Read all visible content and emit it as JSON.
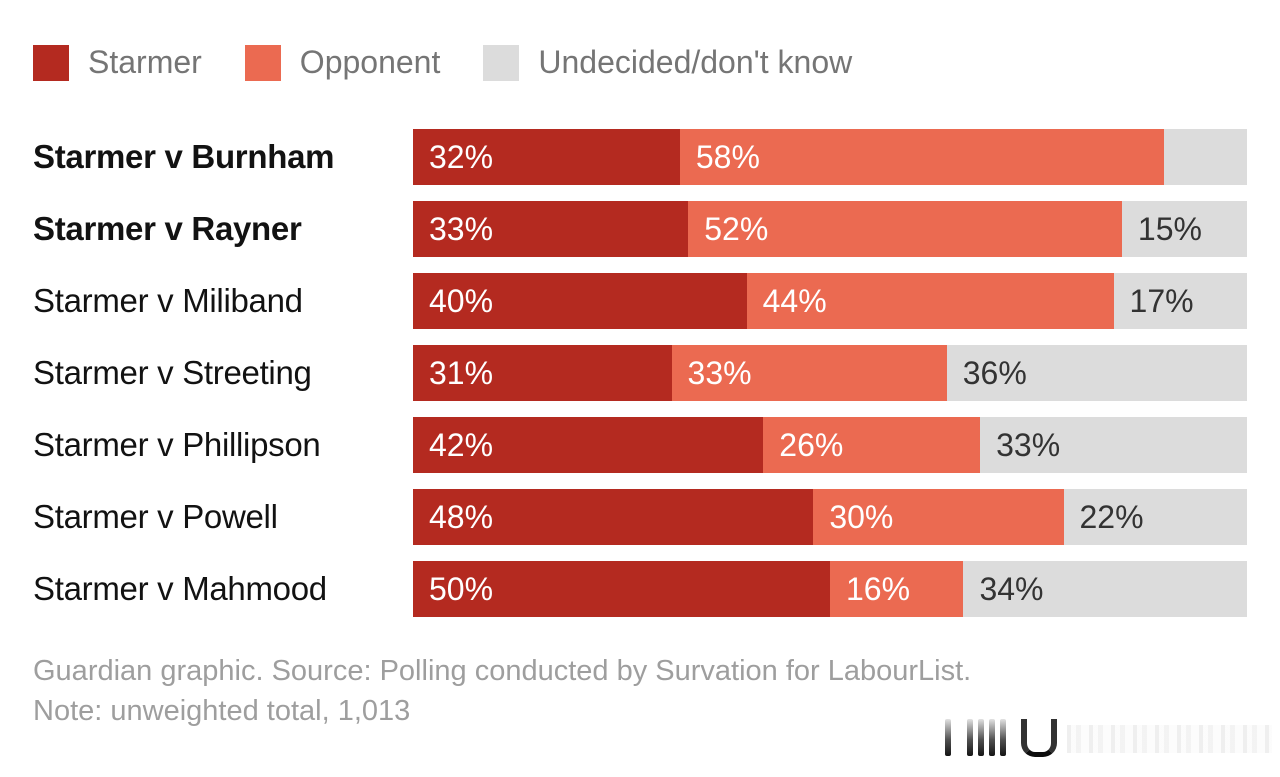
{
  "colors": {
    "starmer": "#b42a20",
    "opponent": "#eb6a51",
    "undecided": "#dcdcdc",
    "label_on_color": "#ffffff",
    "label_on_gray": "#333333",
    "legend_text": "#757575",
    "footer_text": "#9e9e9e",
    "row_label_text": "#121212"
  },
  "legend": [
    {
      "id": "starmer",
      "label": "Starmer",
      "color": "#b42a20"
    },
    {
      "id": "opponent",
      "label": "Opponent",
      "color": "#eb6a51"
    },
    {
      "id": "undecided",
      "label": "Undecided/don't know",
      "color": "#dcdcdc"
    }
  ],
  "rows": [
    {
      "label": "Starmer v Burnham",
      "bold": true,
      "segments": [
        {
          "value": 32,
          "text": "32%"
        },
        {
          "value": 58,
          "text": "58%"
        },
        {
          "value": 10,
          "text": ""
        }
      ]
    },
    {
      "label": "Starmer v Rayner",
      "bold": true,
      "segments": [
        {
          "value": 33,
          "text": "33%"
        },
        {
          "value": 52,
          "text": "52%"
        },
        {
          "value": 15,
          "text": "15%"
        }
      ]
    },
    {
      "label": "Starmer v Miliband",
      "bold": false,
      "segments": [
        {
          "value": 40,
          "text": "40%"
        },
        {
          "value": 44,
          "text": "44%"
        },
        {
          "value": 17,
          "text": "17%"
        }
      ]
    },
    {
      "label": "Starmer v Streeting",
      "bold": false,
      "segments": [
        {
          "value": 31,
          "text": "31%"
        },
        {
          "value": 33,
          "text": "33%"
        },
        {
          "value": 36,
          "text": "36%"
        }
      ]
    },
    {
      "label": "Starmer v Phillipson",
      "bold": false,
      "segments": [
        {
          "value": 42,
          "text": "42%"
        },
        {
          "value": 26,
          "text": "26%"
        },
        {
          "value": 33,
          "text": "33%"
        }
      ]
    },
    {
      "label": "Starmer v Powell",
      "bold": false,
      "segments": [
        {
          "value": 48,
          "text": "48%"
        },
        {
          "value": 30,
          "text": "30%"
        },
        {
          "value": 22,
          "text": "22%"
        }
      ]
    },
    {
      "label": "Starmer v Mahmood",
      "bold": false,
      "segments": [
        {
          "value": 50,
          "text": "50%"
        },
        {
          "value": 16,
          "text": "16%"
        },
        {
          "value": 34,
          "text": "34%"
        }
      ]
    }
  ],
  "footer": {
    "line1": "Guardian graphic. Source: Polling conducted by Survation for LabourList.",
    "line2": "Note: unweighted total, 1,013"
  },
  "chart_data": {
    "type": "bar",
    "subtype": "horizontal-stacked",
    "categories": [
      "Starmer v Burnham",
      "Starmer v Rayner",
      "Starmer v Miliband",
      "Starmer v Streeting",
      "Starmer v Phillipson",
      "Starmer v Powell",
      "Starmer v Mahmood"
    ],
    "series": [
      {
        "name": "Starmer",
        "color": "#b42a20",
        "values": [
          32,
          33,
          40,
          31,
          42,
          48,
          50
        ]
      },
      {
        "name": "Opponent",
        "color": "#eb6a51",
        "values": [
          58,
          52,
          44,
          33,
          26,
          30,
          16
        ]
      },
      {
        "name": "Undecided/don't know",
        "color": "#dcdcdc",
        "values": [
          10,
          15,
          17,
          36,
          33,
          22,
          34
        ]
      }
    ],
    "title": "",
    "xlabel": "",
    "ylabel": "",
    "xlim": [
      0,
      100
    ],
    "grid": false,
    "legend_position": "top",
    "value_labels": "inside-start",
    "notes": "Burnham row undecided segment (~10%) shown without a label"
  }
}
